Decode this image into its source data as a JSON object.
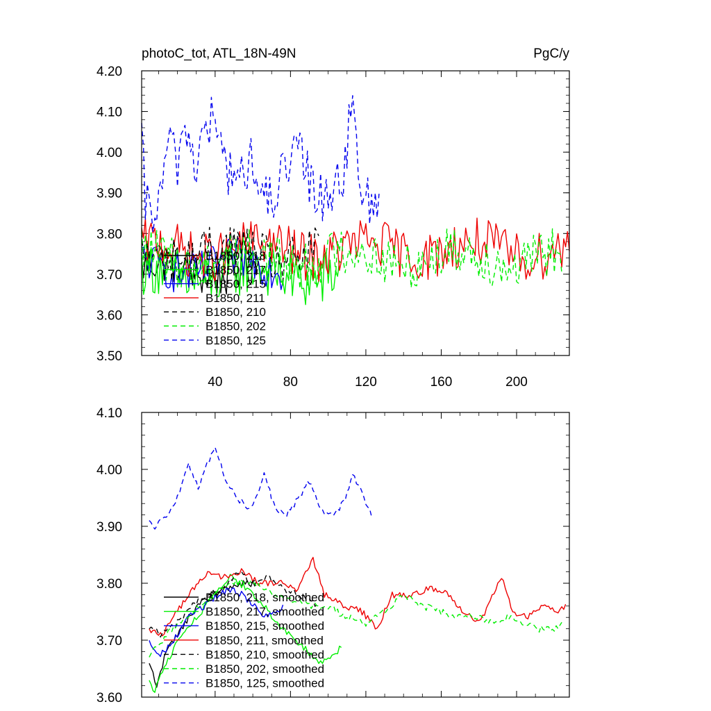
{
  "chart_data": [
    {
      "type": "line",
      "title": "photoC_tot, ATL_18N-49N",
      "units": "PgC/y",
      "xlabel": "",
      "ylabel": "",
      "xlim": [
        1,
        228
      ],
      "ylim": [
        3.5,
        4.2
      ],
      "xticks": [
        40,
        80,
        120,
        160,
        200
      ],
      "xtick_labels": [
        "40",
        "80",
        "120",
        "160",
        "200"
      ],
      "yticks": [
        3.5,
        3.6,
        3.7,
        3.8,
        3.9,
        4.0,
        4.1,
        4.2
      ],
      "ytick_labels": [
        "3.50",
        "3.60",
        "3.70",
        "3.80",
        "3.90",
        "4.00",
        "4.10",
        "4.20"
      ],
      "legend_position": "bottom-left",
      "series": [
        {
          "name": "B1850, 218",
          "color": "#000000",
          "dash": "solid",
          "x_start": 1,
          "x_end": 62,
          "mean": 3.71,
          "amp": 0.05,
          "phase": 0.3
        },
        {
          "name": "B1850, 217",
          "color": "#00ee00",
          "dash": "solid",
          "x_start": 1,
          "x_end": 107,
          "mean": 3.7,
          "amp": 0.07,
          "phase": 1.1
        },
        {
          "name": "B1850, 215",
          "color": "#0000ee",
          "dash": "solid",
          "x_start": 1,
          "x_end": 76,
          "mean": 3.72,
          "amp": 0.05,
          "phase": 2.0
        },
        {
          "name": "B1850, 211",
          "color": "#ee0000",
          "dash": "solid",
          "x_start": 1,
          "x_end": 228,
          "mean": 3.76,
          "amp": 0.06,
          "phase": 0.7
        },
        {
          "name": "B1850, 210",
          "color": "#000000",
          "dash": "dashed",
          "x_start": 1,
          "x_end": 95,
          "mean": 3.75,
          "amp": 0.06,
          "phase": 2.6
        },
        {
          "name": "B1850, 202",
          "color": "#00ee00",
          "dash": "dashed",
          "x_start": 1,
          "x_end": 224,
          "mean": 3.74,
          "amp": 0.06,
          "phase": 1.7
        },
        {
          "name": "B1850, 125",
          "color": "#0000ee",
          "dash": "dashed",
          "x_start": 1,
          "x_end": 127,
          "mean": 3.96,
          "amp": 0.07,
          "phase": 0.2,
          "anchors": [
            [
              1,
              4.01
            ],
            [
              3,
              3.87
            ],
            [
              10,
              3.85
            ],
            [
              14,
              4.01
            ],
            [
              20,
              3.98
            ],
            [
              24,
              4.07
            ],
            [
              30,
              3.97
            ],
            [
              35,
              4.06
            ],
            [
              39,
              4.08
            ],
            [
              45,
              3.97
            ],
            [
              55,
              3.93
            ],
            [
              60,
              4.0
            ],
            [
              65,
              3.86
            ],
            [
              78,
              3.95
            ],
            [
              85,
              4.0
            ],
            [
              92,
              3.9
            ],
            [
              100,
              3.9
            ],
            [
              108,
              3.95
            ],
            [
              112,
              4.1
            ],
            [
              118,
              3.92
            ],
            [
              123,
              3.84
            ],
            [
              127,
              3.93
            ]
          ]
        }
      ]
    },
    {
      "type": "line",
      "title": "",
      "xlabel": "",
      "ylabel": "",
      "xlim": [
        1,
        228
      ],
      "ylim": [
        3.6,
        4.1
      ],
      "xticks": [
        40,
        80,
        120,
        160,
        200
      ],
      "yticks": [
        3.6,
        3.7,
        3.8,
        3.9,
        4.0,
        4.1
      ],
      "ytick_labels": [
        "3.60",
        "3.70",
        "3.80",
        "3.90",
        "4.00",
        "4.10"
      ],
      "legend_position": "bottom-left",
      "series": [
        {
          "name": "B1850, 218, smoothed",
          "color": "#000000",
          "dash": "solid",
          "anchors": [
            [
              5,
              3.66
            ],
            [
              9,
              3.62
            ],
            [
              14,
              3.68
            ],
            [
              22,
              3.72
            ],
            [
              30,
              3.76
            ],
            [
              38,
              3.78
            ],
            [
              46,
              3.79
            ],
            [
              54,
              3.8
            ],
            [
              62,
              3.8
            ]
          ]
        },
        {
          "name": "B1850, 217, smoothed",
          "color": "#00ee00",
          "dash": "solid",
          "anchors": [
            [
              5,
              3.63
            ],
            [
              8,
              3.61
            ],
            [
              14,
              3.66
            ],
            [
              22,
              3.71
            ],
            [
              30,
              3.74
            ],
            [
              40,
              3.78
            ],
            [
              48,
              3.81
            ],
            [
              58,
              3.79
            ],
            [
              66,
              3.76
            ],
            [
              76,
              3.72
            ],
            [
              86,
              3.69
            ],
            [
              95,
              3.66
            ],
            [
              103,
              3.67
            ],
            [
              107,
              3.69
            ]
          ]
        },
        {
          "name": "B1850, 215, smoothed",
          "color": "#0000ee",
          "dash": "solid",
          "anchors": [
            [
              5,
              3.7
            ],
            [
              10,
              3.67
            ],
            [
              18,
              3.7
            ],
            [
              26,
              3.74
            ],
            [
              34,
              3.76
            ],
            [
              42,
              3.78
            ],
            [
              50,
              3.79
            ],
            [
              58,
              3.77
            ],
            [
              66,
              3.74
            ],
            [
              72,
              3.75
            ],
            [
              76,
              3.76
            ]
          ]
        },
        {
          "name": "B1850, 211, smoothed",
          "color": "#ee0000",
          "dash": "solid",
          "anchors": [
            [
              5,
              3.72
            ],
            [
              12,
              3.71
            ],
            [
              20,
              3.75
            ],
            [
              28,
              3.79
            ],
            [
              36,
              3.82
            ],
            [
              44,
              3.81
            ],
            [
              54,
              3.82
            ],
            [
              64,
              3.8
            ],
            [
              74,
              3.8
            ],
            [
              84,
              3.79
            ],
            [
              92,
              3.84
            ],
            [
              98,
              3.78
            ],
            [
              108,
              3.76
            ],
            [
              118,
              3.75
            ],
            [
              126,
              3.72
            ],
            [
              134,
              3.78
            ],
            [
              144,
              3.78
            ],
            [
              154,
              3.79
            ],
            [
              164,
              3.78
            ],
            [
              172,
              3.75
            ],
            [
              180,
              3.73
            ],
            [
              188,
              3.78
            ],
            [
              192,
              3.81
            ],
            [
              198,
              3.75
            ],
            [
              206,
              3.74
            ],
            [
              214,
              3.76
            ],
            [
              222,
              3.75
            ],
            [
              226,
              3.76
            ]
          ]
        },
        {
          "name": "B1850, 210, smoothed",
          "color": "#000000",
          "dash": "dashed",
          "anchors": [
            [
              5,
              3.72
            ],
            [
              12,
              3.71
            ],
            [
              20,
              3.73
            ],
            [
              28,
              3.76
            ],
            [
              36,
              3.78
            ],
            [
              44,
              3.79
            ],
            [
              52,
              3.82
            ],
            [
              60,
              3.8
            ],
            [
              68,
              3.81
            ],
            [
              76,
              3.79
            ],
            [
              84,
              3.78
            ],
            [
              90,
              3.77
            ],
            [
              95,
              3.76
            ]
          ]
        },
        {
          "name": "B1850, 202, smoothed",
          "color": "#00ee00",
          "dash": "dashed",
          "anchors": [
            [
              5,
              3.67
            ],
            [
              12,
              3.7
            ],
            [
              20,
              3.73
            ],
            [
              28,
              3.75
            ],
            [
              36,
              3.77
            ],
            [
              44,
              3.79
            ],
            [
              52,
              3.8
            ],
            [
              60,
              3.8
            ],
            [
              70,
              3.78
            ],
            [
              80,
              3.77
            ],
            [
              90,
              3.76
            ],
            [
              100,
              3.76
            ],
            [
              110,
              3.74
            ],
            [
              120,
              3.73
            ],
            [
              130,
              3.75
            ],
            [
              140,
              3.78
            ],
            [
              150,
              3.76
            ],
            [
              160,
              3.75
            ],
            [
              170,
              3.74
            ],
            [
              180,
              3.74
            ],
            [
              188,
              3.73
            ],
            [
              196,
              3.74
            ],
            [
              204,
              3.73
            ],
            [
              212,
              3.72
            ],
            [
              220,
              3.72
            ],
            [
              224,
              3.73
            ]
          ]
        },
        {
          "name": "B1850, 125, smoothed",
          "color": "#0000ee",
          "dash": "dashed",
          "anchors": [
            [
              5,
              3.91
            ],
            [
              8,
              3.9
            ],
            [
              14,
              3.92
            ],
            [
              20,
              3.95
            ],
            [
              26,
              4.01
            ],
            [
              31,
              3.97
            ],
            [
              36,
              4.01
            ],
            [
              40,
              4.04
            ],
            [
              46,
              3.98
            ],
            [
              52,
              3.95
            ],
            [
              58,
              3.93
            ],
            [
              62,
              3.95
            ],
            [
              66,
              3.99
            ],
            [
              72,
              3.93
            ],
            [
              78,
              3.92
            ],
            [
              84,
              3.95
            ],
            [
              90,
              3.98
            ],
            [
              96,
              3.93
            ],
            [
              102,
              3.92
            ],
            [
              108,
              3.94
            ],
            [
              113,
              3.99
            ],
            [
              118,
              3.96
            ],
            [
              123,
              3.92
            ]
          ]
        }
      ]
    }
  ]
}
